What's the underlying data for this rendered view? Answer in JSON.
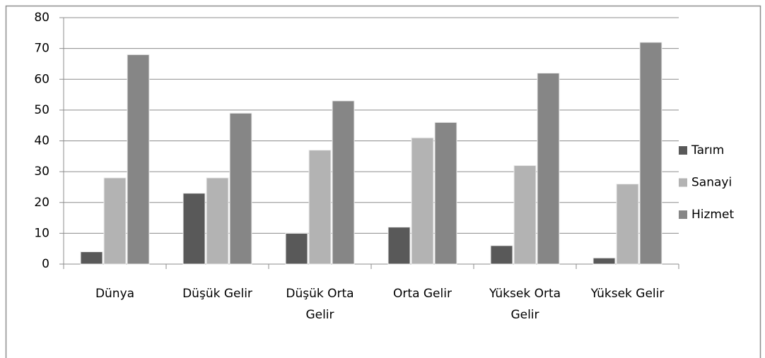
{
  "chart_data": {
    "type": "bar",
    "categories": [
      "Dünya",
      "Düşük Gelir",
      "Düşük Orta Gelir",
      "Orta Gelir",
      "Yüksek Orta Gelir",
      "Yüksek Gelir"
    ],
    "series": [
      {
        "name": "Tarım",
        "color": "#595959",
        "values": [
          4,
          23,
          10,
          12,
          6,
          2
        ]
      },
      {
        "name": "Sanayi",
        "color": "#b3b3b3",
        "values": [
          28,
          28,
          37,
          41,
          32,
          26
        ]
      },
      {
        "name": "Hizmet",
        "color": "#868686",
        "values": [
          68,
          49,
          53,
          46,
          62,
          72
        ]
      }
    ],
    "ylim": [
      0,
      80
    ],
    "yticks": [
      0,
      10,
      20,
      30,
      40,
      50,
      60,
      70,
      80
    ],
    "grid": true,
    "legend": "right"
  }
}
